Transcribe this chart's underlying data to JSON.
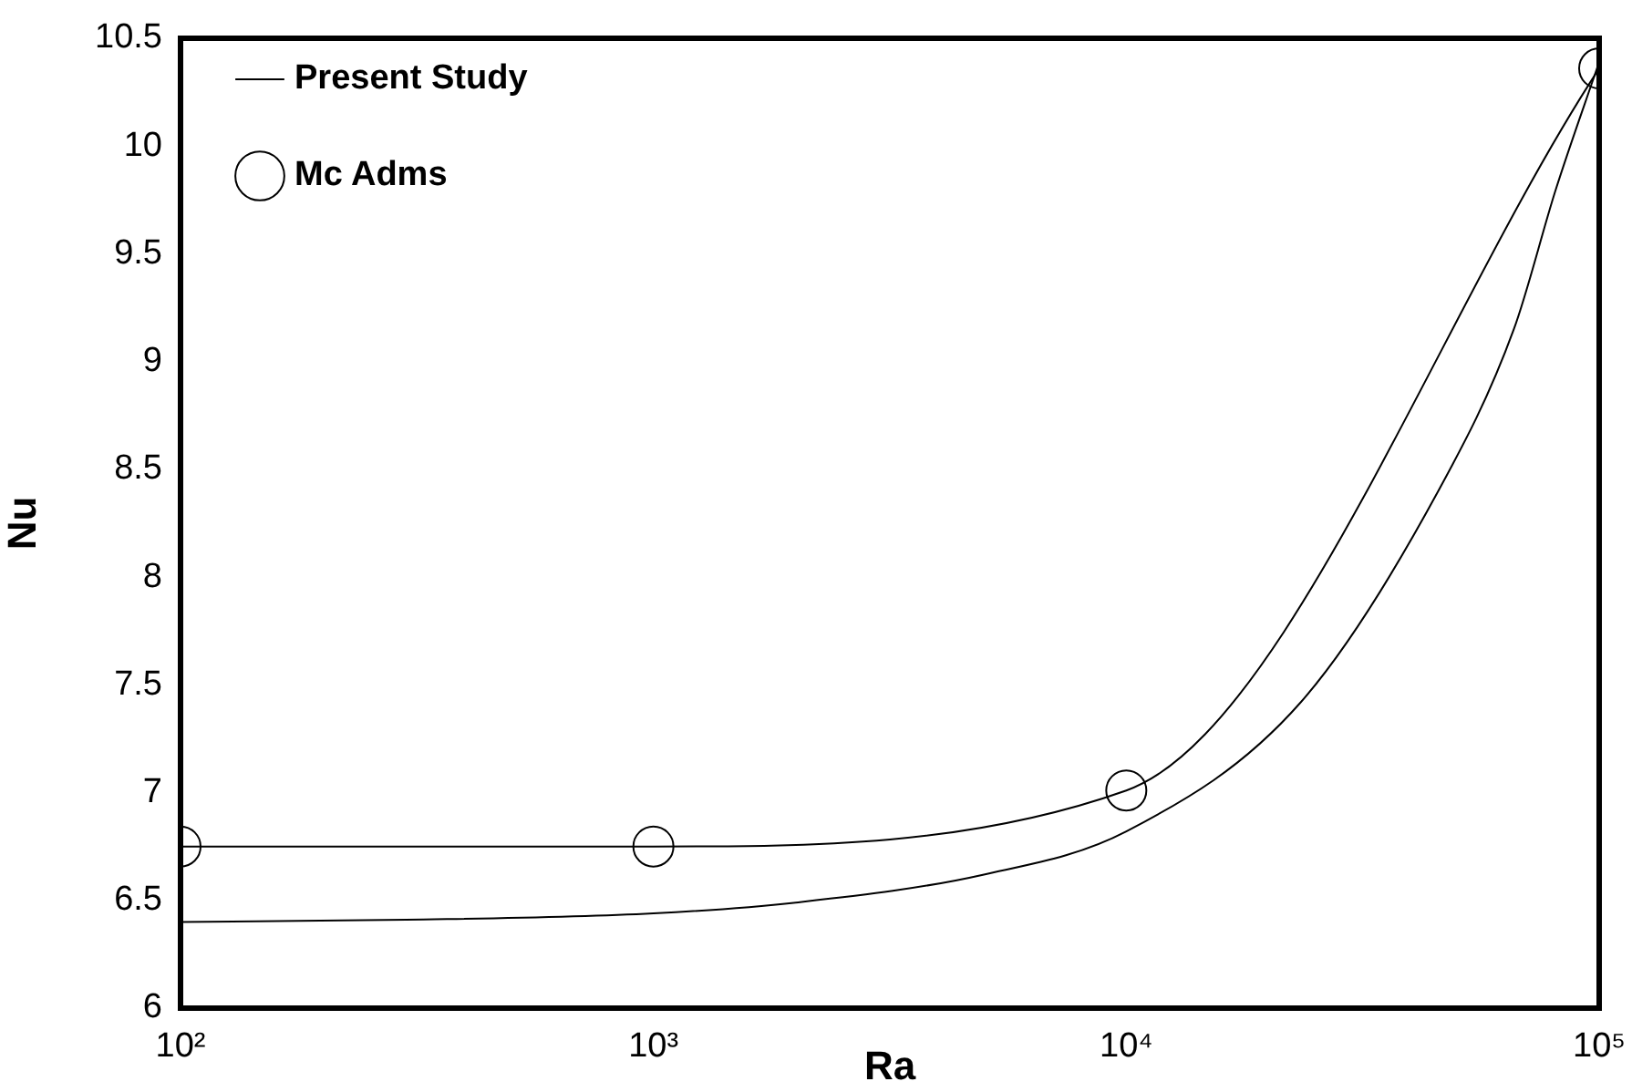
{
  "chart_data": {
    "type": "line",
    "xlabel": "Ra",
    "ylabel": "Nu",
    "log": "x",
    "xlim": [
      100,
      100000
    ],
    "xticks": [
      {
        "value": 100,
        "label": "10²"
      },
      {
        "value": 1000,
        "label": "10³"
      },
      {
        "value": 10000,
        "label": "10⁴"
      },
      {
        "value": 100000,
        "label": "10⁵"
      }
    ],
    "ylim": [
      6,
      10.5
    ],
    "yticks": [
      6,
      6.5,
      7,
      7.5,
      8,
      8.5,
      9,
      9.5,
      10,
      10.5
    ],
    "grid": false,
    "legend": "top left",
    "line_style": "solid",
    "series": [
      {
        "name": "Present Study",
        "color": "#000000",
        "marker": "none",
        "x": [
          100,
          300,
          1000,
          2000,
          5000,
          10000,
          23400,
          45700,
          66000,
          81000,
          100000
        ],
        "values": [
          6.4,
          6.41,
          6.44,
          6.49,
          6.62,
          6.82,
          7.42,
          8.4,
          9.15,
          9.8,
          10.39
        ]
      },
      {
        "name": "Mc Adms",
        "color": "#000000",
        "marker": "circle",
        "x": [
          100,
          1000,
          10000,
          100000
        ],
        "values": [
          6.75,
          6.75,
          7.01,
          10.36
        ]
      }
    ]
  }
}
